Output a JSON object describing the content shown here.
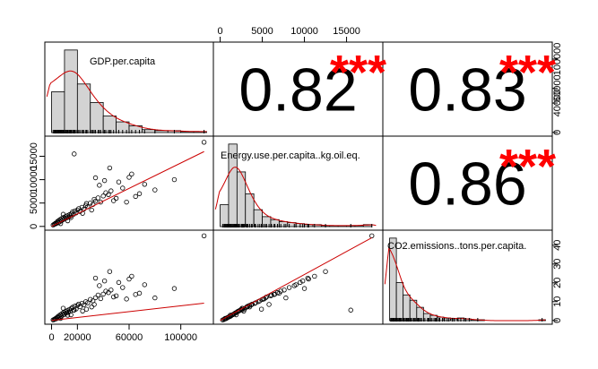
{
  "chart_data": {
    "type": "scatter-matrix",
    "variables": [
      {
        "id": "gdp",
        "label": "GDP.per.capita",
        "range": [
          0,
          120000
        ],
        "ticks": [
          0,
          20000,
          60000,
          100000
        ],
        "tick_labels": [
          "0",
          "20000",
          "60000",
          "100000"
        ]
      },
      {
        "id": "energy",
        "label": "Energy.use.per.capita..kg.oil.eq.",
        "range": [
          0,
          18500
        ],
        "ticks": [
          0,
          5000,
          10000,
          15000
        ],
        "tick_labels": [
          "0",
          "5000",
          "10000",
          "15000"
        ]
      },
      {
        "id": "co2",
        "label": "CO2.emissions..tons.per.capita.",
        "range": [
          0,
          46
        ],
        "ticks": [
          0,
          10,
          20,
          30,
          40
        ],
        "tick_labels": [
          "0",
          "10",
          "20",
          "30",
          "40"
        ]
      }
    ],
    "correlations": [
      {
        "pair": [
          "gdp",
          "energy"
        ],
        "value": "0.82",
        "stars": "***"
      },
      {
        "pair": [
          "gdp",
          "co2"
        ],
        "value": "0.83",
        "stars": "***"
      },
      {
        "pair": [
          "energy",
          "co2"
        ],
        "value": "0.86",
        "stars": "***"
      }
    ],
    "extra_axes": {
      "top_under_energy": {
        "ticks": [
          0,
          5000,
          10000,
          15000
        ],
        "tick_labels": [
          "0",
          "5000",
          "10000",
          "15000"
        ]
      },
      "right_of_gdp": {
        "ticks": [
          0,
          40000,
          60000,
          100000
        ],
        "tick_labels": [
          "0",
          "40000",
          "60000",
          "100000"
        ]
      }
    },
    "histograms": {
      "gdp": {
        "bin_edges": [
          0,
          10000,
          20000,
          30000,
          40000,
          50000,
          60000,
          70000,
          80000,
          90000,
          100000,
          110000,
          120000
        ],
        "density": [
          0.42,
          0.85,
          0.5,
          0.31,
          0.17,
          0.11,
          0.07,
          0.03,
          0.02,
          0.02,
          0.01,
          0.01
        ]
      },
      "energy": {
        "bin_edges": [
          0,
          1000,
          2000,
          3000,
          4000,
          5000,
          6000,
          7000,
          8000,
          9000,
          10000,
          11000,
          12000,
          13000,
          14000,
          15000,
          16000,
          17000,
          18000
        ],
        "density": [
          0.22,
          0.83,
          0.55,
          0.33,
          0.17,
          0.1,
          0.07,
          0.05,
          0.04,
          0.03,
          0.02,
          0.02,
          0.01,
          0.01,
          0.01,
          0.01,
          0.01,
          0.02
        ]
      },
      "co2": {
        "bin_edges": [
          0,
          2,
          4,
          6,
          8,
          10,
          12,
          14,
          16,
          18,
          20,
          22,
          24,
          26,
          28,
          30,
          32,
          34,
          36,
          38,
          40,
          42,
          44,
          46
        ],
        "density": [
          0.93,
          0.43,
          0.29,
          0.23,
          0.15,
          0.08,
          0.06,
          0.04,
          0.03,
          0.02,
          0.03,
          0.02,
          0.01,
          0.01,
          0.0,
          0.0,
          0.0,
          0.0,
          0.0,
          0.0,
          0.0,
          0.0,
          0.01
        ]
      }
    },
    "points": [
      {
        "gdp": 1200,
        "energy": 300,
        "co2": 0.3
      },
      {
        "gdp": 2000,
        "energy": 450,
        "co2": 0.5
      },
      {
        "gdp": 2600,
        "energy": 520,
        "co2": 0.8
      },
      {
        "gdp": 3100,
        "energy": 700,
        "co2": 1.0
      },
      {
        "gdp": 3500,
        "energy": 600,
        "co2": 0.9
      },
      {
        "gdp": 4200,
        "energy": 900,
        "co2": 1.6
      },
      {
        "gdp": 4800,
        "energy": 1100,
        "co2": 2.0
      },
      {
        "gdp": 5200,
        "energy": 800,
        "co2": 1.3
      },
      {
        "gdp": 5800,
        "energy": 1300,
        "co2": 2.5
      },
      {
        "gdp": 6300,
        "energy": 1000,
        "co2": 1.8
      },
      {
        "gdp": 6900,
        "energy": 1500,
        "co2": 3.1
      },
      {
        "gdp": 7500,
        "energy": 1200,
        "co2": 2.2
      },
      {
        "gdp": 8000,
        "energy": 1700,
        "co2": 3.6
      },
      {
        "gdp": 8700,
        "energy": 1400,
        "co2": 2.9
      },
      {
        "gdp": 9300,
        "energy": 1900,
        "co2": 4.2
      },
      {
        "gdp": 10000,
        "energy": 1600,
        "co2": 3.3
      },
      {
        "gdp": 10800,
        "energy": 2100,
        "co2": 4.8
      },
      {
        "gdp": 11500,
        "energy": 1800,
        "co2": 4.0
      },
      {
        "gdp": 12200,
        "energy": 2300,
        "co2": 5.3
      },
      {
        "gdp": 13000,
        "energy": 2000,
        "co2": 4.4
      },
      {
        "gdp": 13800,
        "energy": 2500,
        "co2": 5.9
      },
      {
        "gdp": 14500,
        "energy": 2200,
        "co2": 5.0
      },
      {
        "gdp": 15300,
        "energy": 2700,
        "co2": 6.4
      },
      {
        "gdp": 16200,
        "energy": 3100,
        "co2": 7.0
      },
      {
        "gdp": 17000,
        "energy": 2600,
        "co2": 5.6
      },
      {
        "gdp": 18000,
        "energy": 3300,
        "co2": 7.6
      },
      {
        "gdp": 19000,
        "energy": 2900,
        "co2": 6.1
      },
      {
        "gdp": 20000,
        "energy": 3500,
        "co2": 8.0
      },
      {
        "gdp": 21000,
        "energy": 3800,
        "co2": 8.7
      },
      {
        "gdp": 22000,
        "energy": 3200,
        "co2": 7.3
      },
      {
        "gdp": 23500,
        "energy": 4100,
        "co2": 9.1
      },
      {
        "gdp": 25000,
        "energy": 3700,
        "co2": 8.3
      },
      {
        "gdp": 26500,
        "energy": 4500,
        "co2": 10.0
      },
      {
        "gdp": 28000,
        "energy": 4200,
        "co2": 9.4
      },
      {
        "gdp": 30000,
        "energy": 5000,
        "co2": 11.2
      },
      {
        "gdp": 32000,
        "energy": 4700,
        "co2": 10.4
      },
      {
        "gdp": 34000,
        "energy": 5400,
        "co2": 12.1
      },
      {
        "gdp": 36000,
        "energy": 6100,
        "co2": 13.5
      },
      {
        "gdp": 38000,
        "energy": 5200,
        "co2": 11.6
      },
      {
        "gdp": 40000,
        "energy": 6500,
        "co2": 14.0
      },
      {
        "gdp": 42000,
        "energy": 7200,
        "co2": 15.6
      },
      {
        "gdp": 44000,
        "energy": 6800,
        "co2": 14.8
      },
      {
        "gdp": 46000,
        "energy": 7600,
        "co2": 16.2
      },
      {
        "gdp": 48000,
        "energy": 5500,
        "co2": 12.5
      },
      {
        "gdp": 50000,
        "energy": 6000,
        "co2": 13.1
      },
      {
        "gdp": 52000,
        "energy": 9500,
        "co2": 20.2
      },
      {
        "gdp": 55000,
        "energy": 8200,
        "co2": 17.5
      },
      {
        "gdp": 58000,
        "energy": 5200,
        "co2": 11.4
      },
      {
        "gdp": 60000,
        "energy": 10500,
        "co2": 22.0
      },
      {
        "gdp": 62000,
        "energy": 11200,
        "co2": 23.5
      },
      {
        "gdp": 65000,
        "energy": 6400,
        "co2": 13.8
      },
      {
        "gdp": 68000,
        "energy": 7000,
        "co2": 14.5
      },
      {
        "gdp": 72000,
        "energy": 9000,
        "co2": 19.0
      },
      {
        "gdp": 80000,
        "energy": 7800,
        "co2": 12.0
      },
      {
        "gdp": 95000,
        "energy": 10000,
        "co2": 17.0
      },
      {
        "gdp": 45000,
        "energy": 12500,
        "co2": 26.0
      },
      {
        "gdp": 118000,
        "energy": 18000,
        "co2": 45.0
      },
      {
        "gdp": 37000,
        "energy": 8800,
        "co2": 18.5
      },
      {
        "gdp": 41000,
        "energy": 9800,
        "co2": 21.0
      },
      {
        "gdp": 34000,
        "energy": 10400,
        "co2": 22.5
      },
      {
        "gdp": 27000,
        "energy": 4900,
        "co2": 6.0
      },
      {
        "gdp": 33000,
        "energy": 5800,
        "co2": 8.5
      },
      {
        "gdp": 15000,
        "energy": 1900,
        "co2": 3.0
      },
      {
        "gdp": 9000,
        "energy": 2600,
        "co2": 6.5
      },
      {
        "gdp": 24000,
        "energy": 2800,
        "co2": 5.0
      },
      {
        "gdp": 31000,
        "energy": 3500,
        "co2": 7.2
      },
      {
        "gdp": 17500,
        "energy": 15500,
        "co2": 5.5
      },
      {
        "gdp": 12500,
        "energy": 1200,
        "co2": 2.8
      },
      {
        "gdp": 7000,
        "energy": 600,
        "co2": 1.1
      }
    ],
    "fit_lines": {
      "gdp_energy": {
        "x0": 0,
        "y0": 0,
        "x1": 118000,
        "y1": 16000
      },
      "gdp_co2": {
        "x0": 0,
        "y0": 0,
        "x1": 118000,
        "y1": 20000
      },
      "energy_co2": {
        "x0": 0,
        "y0": 0,
        "x1": 18000,
        "y1": 44
      }
    },
    "grid": false,
    "legend": "none",
    "colors": {
      "fit": "#cc0000",
      "stars": "#ff0000",
      "hist_fill": "#d3d3d3"
    }
  }
}
